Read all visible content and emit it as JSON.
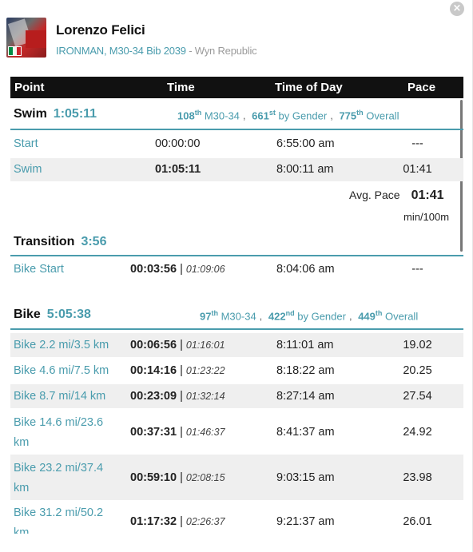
{
  "close_label": "×",
  "athlete": {
    "name": "Lorenzo Felici",
    "race": "IRONMAN, M30-34 Bib 2039",
    "separator": " - ",
    "country": "Wyn Republic",
    "flag_colors": [
      "#008c45",
      "#f4f5f0",
      "#cd212a"
    ]
  },
  "columns": [
    "Point",
    "Time",
    "Time of Day",
    "Pace"
  ],
  "swim": {
    "title": "Swim",
    "time": "1:05:11",
    "ranks": [
      {
        "num": "108",
        "suffix": "th",
        "label": "M30-34"
      },
      {
        "num": "661",
        "suffix": "st",
        "label": "by Gender"
      },
      {
        "num": "775",
        "suffix": "th",
        "label": "Overall"
      }
    ],
    "rows": [
      {
        "point": "Start",
        "time": "00:00:00",
        "tod": "6:55:00 am",
        "pace": "---"
      },
      {
        "point": "Swim",
        "time": "01:05:11",
        "tod": "8:00:11 am",
        "pace": "01:41"
      }
    ],
    "avg_label": "Avg. Pace",
    "avg_value": "01:41",
    "avg_unit": "min/100m"
  },
  "transition": {
    "title": "Transition",
    "time": "3:56",
    "rows": [
      {
        "point": "Bike Start",
        "time": "00:03:56",
        "cumulative": "01:09:06",
        "tod": "8:04:06 am",
        "pace": "---"
      }
    ]
  },
  "bike": {
    "title": "Bike",
    "time": "5:05:38",
    "ranks": [
      {
        "num": "97",
        "suffix": "th",
        "label": "M30-34"
      },
      {
        "num": "422",
        "suffix": "nd",
        "label": "by Gender"
      },
      {
        "num": "449",
        "suffix": "th",
        "label": "Overall"
      }
    ],
    "rows": [
      {
        "point": "Bike 2.2 mi/3.5 km",
        "time": "00:06:56",
        "cumulative": "01:16:01",
        "tod": "8:11:01 am",
        "pace": "19.02"
      },
      {
        "point": "Bike 4.6 mi/7.5 km",
        "time": "00:14:16",
        "cumulative": "01:23:22",
        "tod": "8:18:22 am",
        "pace": "20.25"
      },
      {
        "point": "Bike 8.7 mi/14 km",
        "time": "00:23:09",
        "cumulative": "01:32:14",
        "tod": "8:27:14 am",
        "pace": "27.54"
      },
      {
        "point_line1": "Bike 14.6 mi/23.6",
        "point_line2": "km",
        "time": "00:37:31",
        "cumulative": "01:46:37",
        "tod": "8:41:37 am",
        "pace": "24.92"
      },
      {
        "point_line1": "Bike 23.2 mi/37.4",
        "point_line2": "km",
        "time": "00:59:10",
        "cumulative": "02:08:15",
        "tod": "9:03:15 am",
        "pace": "23.98"
      },
      {
        "point_line1": "Bike 31.2 mi/50.2",
        "point_line2": "km",
        "time": "01:17:32",
        "cumulative": "02:26:37",
        "tod": "9:21:37 am",
        "pace": "26.01"
      }
    ]
  },
  "pipe": "|"
}
